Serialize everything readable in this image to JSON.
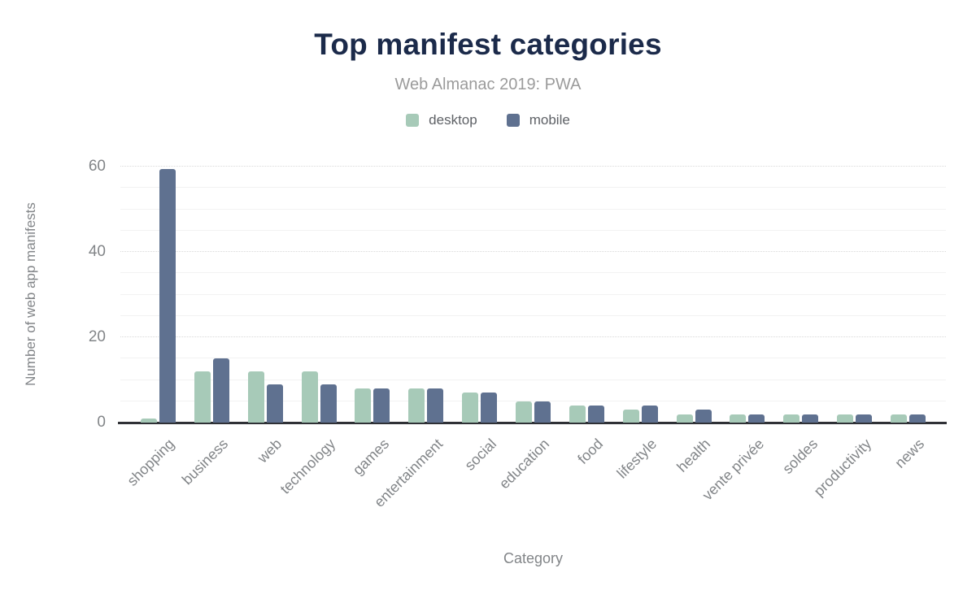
{
  "chart_data": {
    "type": "bar",
    "title": "Top manifest categories",
    "subtitle": "Web Almanac 2019: PWA",
    "xlabel": "Category",
    "ylabel": "Number of web app manifests",
    "categories": [
      "shopping",
      "business",
      "web",
      "technology",
      "games",
      "entertainment",
      "social",
      "education",
      "food",
      "lifestyle",
      "health",
      "vente privée",
      "soldes",
      "productivity",
      "news"
    ],
    "series": [
      {
        "name": "desktop",
        "color": "#a7cab8",
        "values": [
          1,
          12,
          12,
          12,
          8,
          8,
          7,
          5,
          4,
          3,
          2,
          2,
          2,
          2,
          2
        ]
      },
      {
        "name": "mobile",
        "color": "#5f7190",
        "values": [
          59.5,
          15,
          9,
          9,
          8,
          8,
          7,
          5,
          4,
          4,
          3,
          2,
          2,
          2,
          2
        ]
      }
    ],
    "ylim": [
      0,
      60
    ],
    "yticks": [
      0,
      20,
      40,
      60
    ],
    "minor_grid_step": 5,
    "grid": "on",
    "legend_position": "top"
  },
  "colors": {
    "background": "#ffffff",
    "title": "#1b2a4a",
    "subtitle": "#9b9b9b",
    "legend_text": "#5e6166",
    "axis_text": "#828588",
    "axis_line": "#2f3136",
    "major_grid": "#d9d9d9",
    "minor_grid": "#f2f2f2"
  }
}
